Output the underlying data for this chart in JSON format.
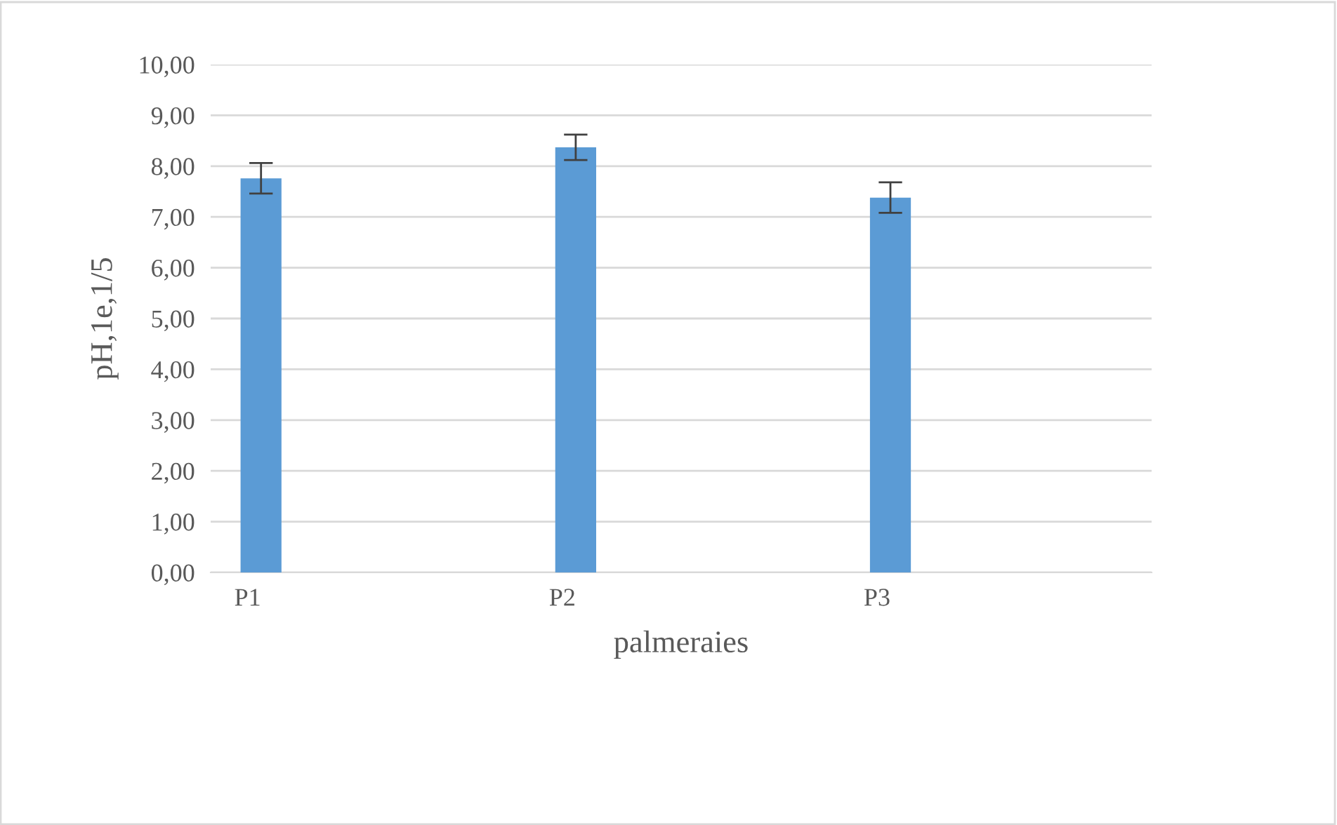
{
  "chart_data": {
    "type": "bar",
    "xlabel": "palmeraies",
    "ylabel": "pH,1e,1/5",
    "categories": [
      "P1",
      "P2",
      "P3"
    ],
    "values": [
      7.76,
      8.37,
      7.38
    ],
    "errors": [
      0.3,
      0.25,
      0.3
    ],
    "color": "#5b9bd5",
    "ylim": [
      0,
      10
    ],
    "yticks": [
      {
        "value": 0,
        "label": "0,00"
      },
      {
        "value": 1,
        "label": "1,00"
      },
      {
        "value": 2,
        "label": "2,00"
      },
      {
        "value": 3,
        "label": "3,00"
      },
      {
        "value": 4,
        "label": "4,00"
      },
      {
        "value": 5,
        "label": "5,00"
      },
      {
        "value": 6,
        "label": "6,00"
      },
      {
        "value": 7,
        "label": "7,00"
      },
      {
        "value": 8,
        "label": "8,00"
      },
      {
        "value": 9,
        "label": "9,00"
      },
      {
        "value": 10,
        "label": "10,00"
      }
    ],
    "grid": "y"
  }
}
